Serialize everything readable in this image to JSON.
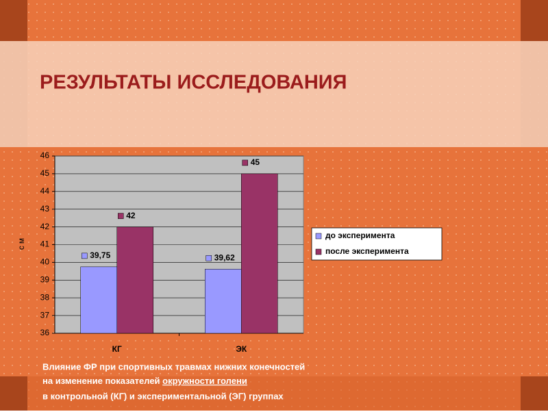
{
  "slide_title": "РЕЗУЛЬТАТЫ ИССЛЕДОВАНИЯ",
  "caption": {
    "line1": "Влияние ФР при спортивных травмах нижних конечностей",
    "line2_start": "на изменение показателей ",
    "line2_underlined": "окружности голени",
    "line3": "в контрольной (КГ) и экспериментальной (ЭГ) группах"
  },
  "chart_data": {
    "type": "bar",
    "y_label": "см",
    "categories": [
      "КГ",
      "ЭК"
    ],
    "series": [
      {
        "name": "до эксперимента",
        "color": "#9999ff",
        "values": [
          39.75,
          39.62
        ],
        "value_labels": [
          "39,75",
          "39,62"
        ]
      },
      {
        "name": "после эксперимента",
        "color": "#993366",
        "values": [
          42,
          45
        ],
        "value_labels": [
          "42",
          "45"
        ]
      }
    ],
    "ylim": [
      36,
      46
    ],
    "yticks": [
      36,
      37,
      38,
      39,
      40,
      41,
      42,
      43,
      44,
      45,
      46
    ],
    "grid": true,
    "legend": "right"
  }
}
